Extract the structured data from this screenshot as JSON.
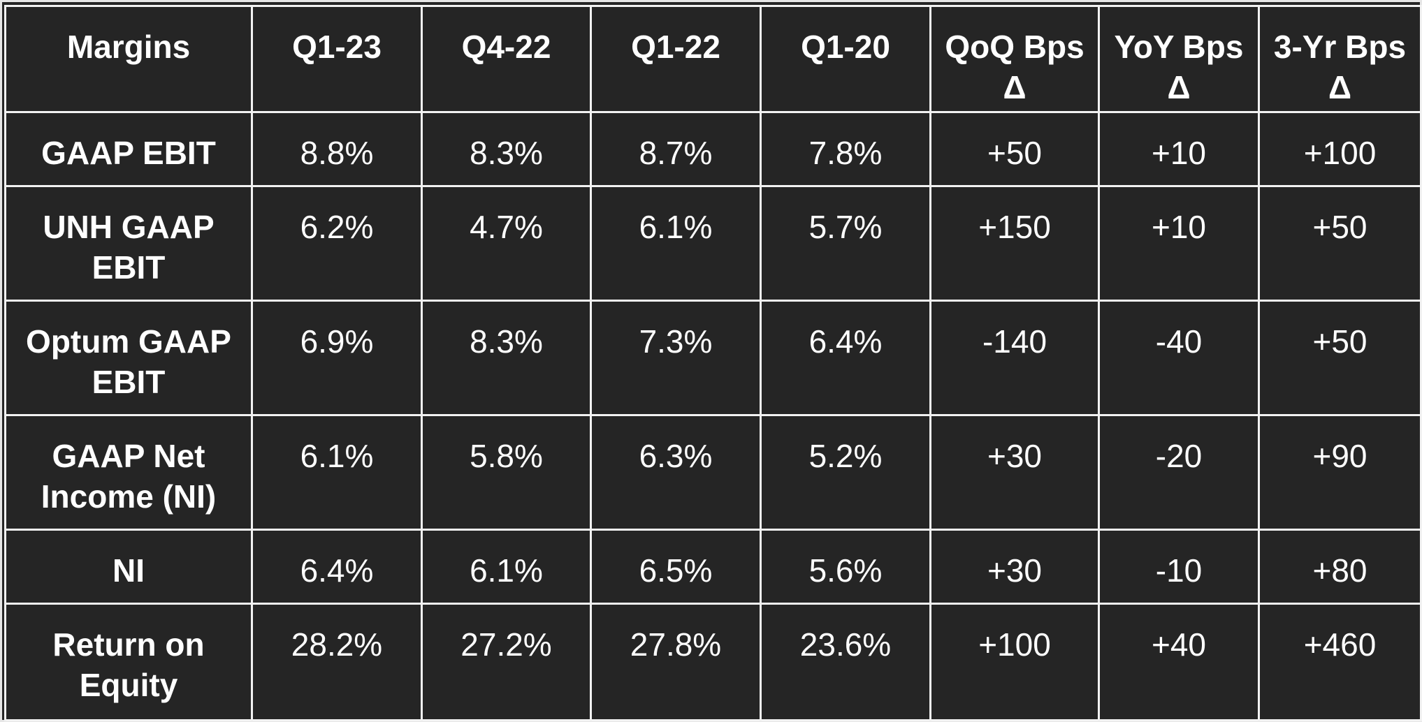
{
  "table": {
    "headers": [
      "Margins",
      "Q1-23",
      "Q4-22",
      "Q1-22",
      "Q1-20",
      "QoQ Bps Δ",
      "YoY Bps Δ",
      "3-Yr Bps Δ"
    ],
    "rows": [
      {
        "label": "GAAP EBIT",
        "values": [
          "8.8%",
          "8.3%",
          "8.7%",
          "7.8%",
          "+50",
          "+10",
          "+100"
        ]
      },
      {
        "label": "UNH GAAP EBIT",
        "values": [
          "6.2%",
          "4.7%",
          "6.1%",
          "5.7%",
          "+150",
          "+10",
          "+50"
        ]
      },
      {
        "label": "Optum GAAP EBIT",
        "values": [
          "6.9%",
          "8.3%",
          "7.3%",
          "6.4%",
          "-140",
          "-40",
          "+50"
        ]
      },
      {
        "label": "GAAP Net Income (NI)",
        "values": [
          "6.1%",
          "5.8%",
          "6.3%",
          "5.2%",
          "+30",
          "-20",
          "+90"
        ]
      },
      {
        "label": "NI",
        "values": [
          "6.4%",
          "6.1%",
          "6.5%",
          "5.6%",
          "+30",
          "-10",
          "+80"
        ]
      },
      {
        "label": "Return on Equity",
        "values": [
          "28.2%",
          "27.2%",
          "27.8%",
          "23.6%",
          "+100",
          "+40",
          "+460"
        ]
      }
    ]
  },
  "colors": {
    "background": "#252525",
    "grid": "#f2f2f2",
    "text": "#ffffff"
  }
}
